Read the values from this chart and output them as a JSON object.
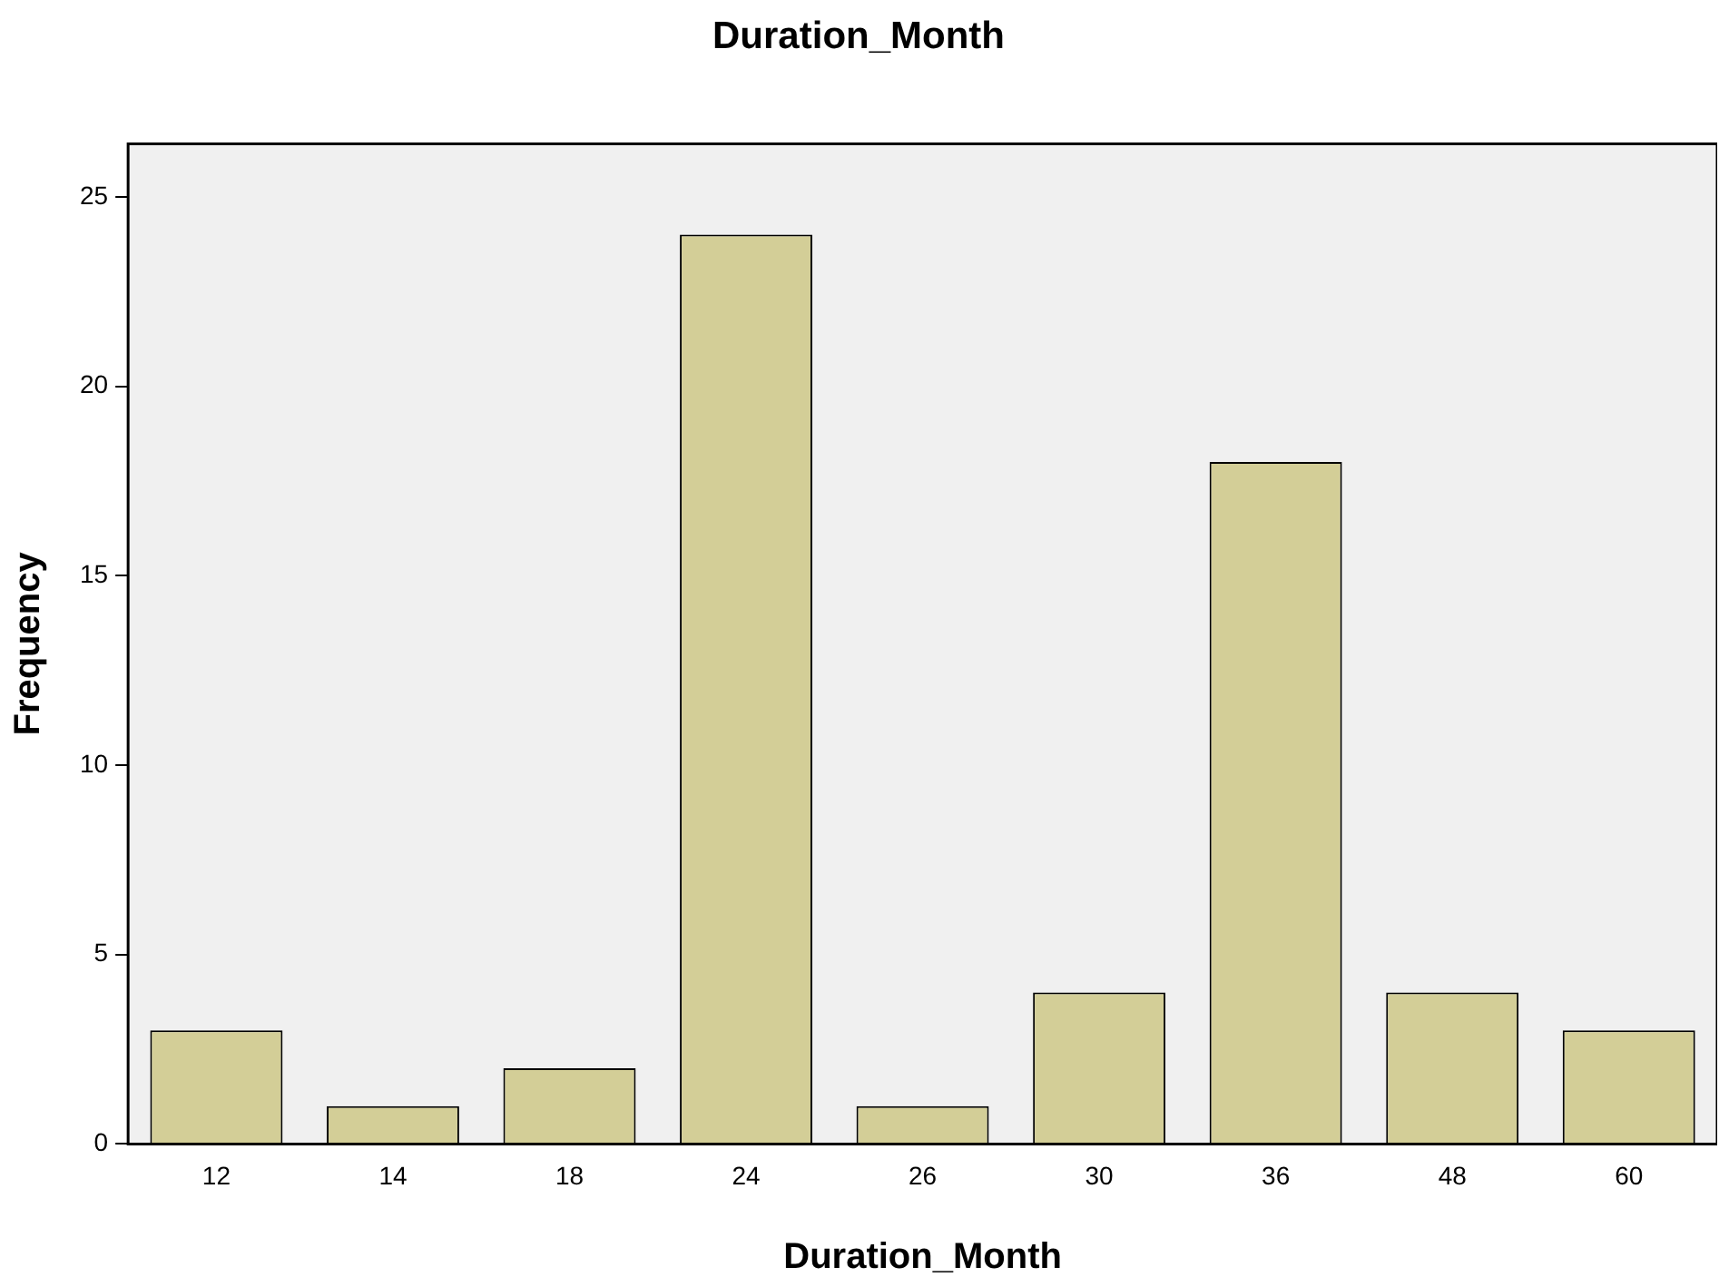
{
  "chart_data": {
    "type": "bar",
    "title": "Duration_Month",
    "xlabel": "Duration_Month",
    "ylabel": "Frequency",
    "categories": [
      "12",
      "14",
      "18",
      "24",
      "26",
      "30",
      "36",
      "48",
      "60"
    ],
    "values": [
      3,
      1,
      2,
      24,
      1,
      4,
      18,
      4,
      3
    ],
    "color": "#d3ce97",
    "ylim": [
      0,
      26.4
    ],
    "yticks": [
      0,
      5,
      10,
      15,
      20,
      25
    ],
    "grid": false,
    "legend": false
  }
}
